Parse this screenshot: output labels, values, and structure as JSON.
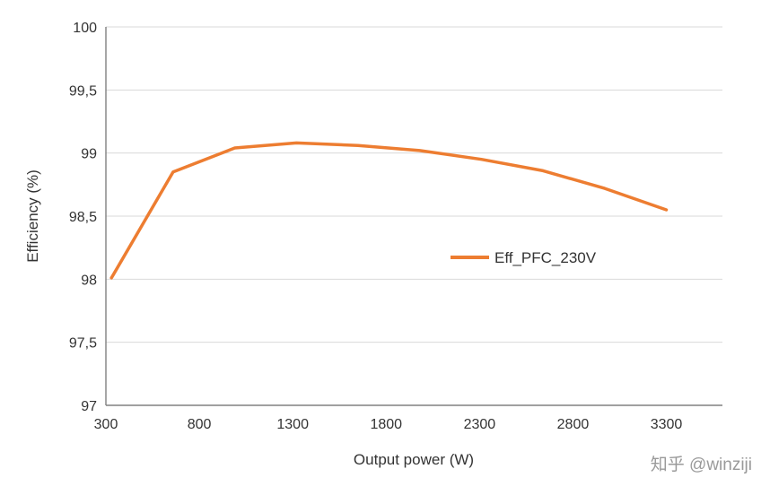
{
  "watermark": {
    "text": "知乎 @winziji"
  },
  "colors": {
    "series": "#ED7D31",
    "gridline": "#D9D9D9",
    "axis": "#808080",
    "text": "#333333",
    "watermark": "#9a9a9a",
    "background": "#ffffff"
  },
  "chart_data": {
    "type": "line",
    "title": "",
    "xlabel": "Output power (W)",
    "ylabel": "Efficiency (%)",
    "xlim": [
      300,
      3600
    ],
    "ylim": [
      97,
      100
    ],
    "grid": "horizontal",
    "legend_position": "inside-center-right",
    "x_ticks": {
      "values": [
        300,
        800,
        1300,
        1800,
        2300,
        2800,
        3300
      ],
      "labels": [
        "300",
        "800",
        "1300",
        "1800",
        "2300",
        "2800",
        "3300"
      ]
    },
    "y_ticks": {
      "values": [
        97,
        97.5,
        98,
        98.5,
        99,
        99.5,
        100
      ],
      "labels": [
        "97",
        "97,5",
        "98",
        "98,5",
        "99",
        "99,5",
        "100"
      ]
    },
    "series": [
      {
        "name": "Eff_PFC_230V",
        "x": [
          330,
          660,
          990,
          1320,
          1650,
          1980,
          2310,
          2640,
          2970,
          3300
        ],
        "y": [
          98.01,
          98.85,
          99.04,
          99.08,
          99.06,
          99.02,
          98.95,
          98.86,
          98.72,
          98.55
        ]
      }
    ]
  }
}
